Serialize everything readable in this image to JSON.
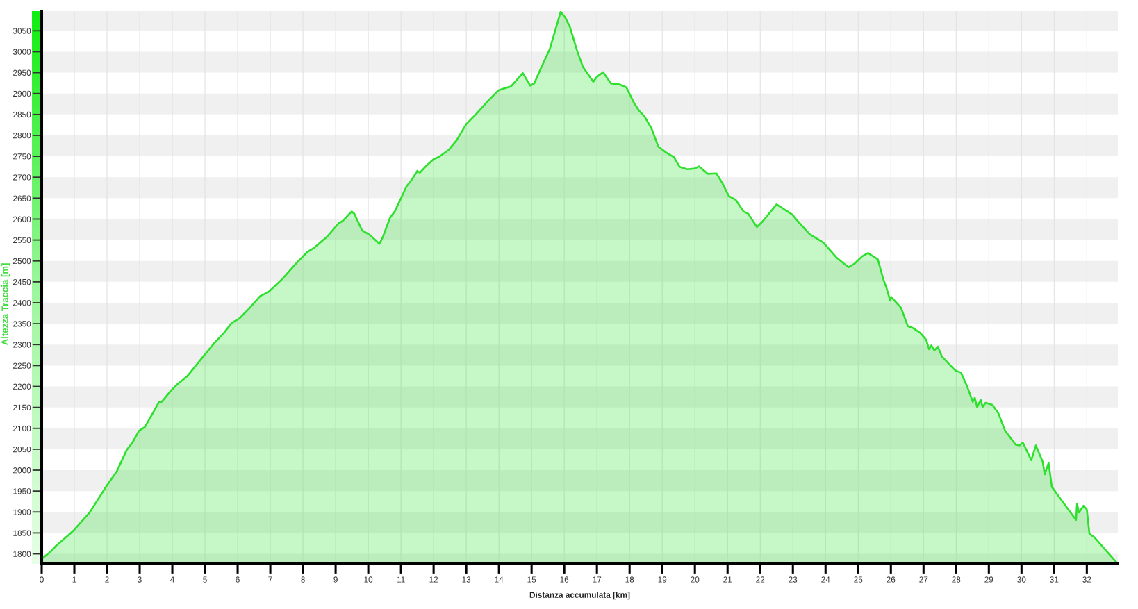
{
  "chart_data": {
    "type": "area",
    "xlabel": "Distanza accumulata [km]",
    "ylabel": "Altezza Traccia [m]",
    "x": [
      0,
      0.27,
      0.45,
      0.81,
      0.99,
      1.47,
      2.0,
      2.3,
      2.6,
      2.78,
      2.98,
      3.16,
      3.43,
      3.59,
      3.67,
      3.97,
      4.15,
      4.45,
      4.98,
      5.28,
      5.58,
      5.82,
      6.06,
      6.35,
      6.69,
      6.95,
      7.37,
      7.78,
      8.14,
      8.32,
      8.74,
      9.09,
      9.21,
      9.49,
      9.57,
      9.81,
      10.05,
      10.34,
      10.45,
      10.67,
      10.81,
      11.17,
      11.34,
      11.5,
      11.58,
      11.76,
      12.0,
      12.17,
      12.47,
      12.71,
      13.0,
      13.29,
      13.66,
      13.99,
      14.19,
      14.37,
      14.55,
      14.73,
      14.96,
      15.08,
      15.26,
      15.56,
      15.89,
      16.03,
      16.17,
      16.39,
      16.57,
      16.89,
      17.0,
      17.19,
      17.43,
      17.69,
      17.9,
      18.14,
      18.29,
      18.46,
      18.67,
      18.88,
      19.12,
      19.36,
      19.53,
      19.77,
      20.0,
      20.12,
      20.4,
      20.66,
      20.84,
      21.04,
      21.25,
      21.49,
      21.63,
      21.9,
      22.08,
      22.5,
      22.98,
      23.15,
      23.51,
      23.93,
      24.35,
      24.7,
      24.88,
      25.12,
      25.3,
      25.6,
      25.77,
      25.86,
      25.98,
      26.01,
      26.31,
      26.52,
      26.67,
      26.9,
      27.08,
      27.17,
      27.24,
      27.33,
      27.44,
      27.56,
      27.8,
      27.98,
      28.15,
      28.33,
      28.51,
      28.57,
      28.64,
      28.75,
      28.81,
      28.9,
      29.11,
      29.29,
      29.5,
      29.82,
      29.94,
      30.04,
      30.3,
      30.44,
      30.65,
      30.71,
      30.83,
      30.93,
      31.19,
      31.67,
      31.7,
      31.76,
      31.9,
      32.0,
      32.08,
      32.24,
      32.89
    ],
    "values": [
      1788,
      1805,
      1820,
      1844,
      1857,
      1899,
      1964,
      1997,
      2048,
      2066,
      2094,
      2103,
      2140,
      2163,
      2163,
      2191,
      2205,
      2224,
      2275,
      2303,
      2328,
      2352,
      2363,
      2386,
      2416,
      2426,
      2457,
      2493,
      2522,
      2530,
      2558,
      2590,
      2595,
      2618,
      2613,
      2573,
      2562,
      2541,
      2558,
      2604,
      2618,
      2678,
      2695,
      2715,
      2711,
      2726,
      2743,
      2749,
      2766,
      2789,
      2827,
      2850,
      2882,
      2908,
      2913,
      2917,
      2933,
      2949,
      2919,
      2924,
      2956,
      3007,
      3095,
      3082,
      3060,
      3003,
      2964,
      2928,
      2940,
      2951,
      2924,
      2922,
      2915,
      2877,
      2859,
      2845,
      2817,
      2773,
      2759,
      2748,
      2725,
      2719,
      2721,
      2726,
      2708,
      2709,
      2686,
      2655,
      2646,
      2618,
      2613,
      2581,
      2595,
      2635,
      2611,
      2595,
      2564,
      2544,
      2507,
      2485,
      2493,
      2511,
      2519,
      2504,
      2456,
      2437,
      2405,
      2414,
      2388,
      2344,
      2340,
      2328,
      2312,
      2289,
      2298,
      2286,
      2295,
      2272,
      2252,
      2238,
      2233,
      2201,
      2163,
      2173,
      2151,
      2168,
      2151,
      2161,
      2156,
      2136,
      2094,
      2061,
      2059,
      2066,
      2024,
      2059,
      2020,
      1990,
      2017,
      1960,
      1932,
      1881,
      1920,
      1899,
      1915,
      1906,
      1848,
      1839,
      1781
    ],
    "color": "#2ee02e",
    "xlim": [
      0,
      32.95
    ],
    "ylim": [
      1776,
      3097
    ],
    "xticks": [
      0,
      1,
      2,
      3,
      4,
      5,
      6,
      7,
      8,
      9,
      10,
      11,
      12,
      13,
      14,
      15,
      16,
      17,
      18,
      19,
      20,
      21,
      22,
      23,
      24,
      25,
      26,
      27,
      28,
      29,
      30,
      31,
      32
    ],
    "yticks": [
      1800,
      1850,
      1900,
      1950,
      2000,
      2050,
      2100,
      2150,
      2200,
      2250,
      2300,
      2350,
      2400,
      2450,
      2500,
      2550,
      2600,
      2650,
      2700,
      2750,
      2800,
      2850,
      2900,
      2950,
      3000,
      3050
    ],
    "grid": true
  }
}
